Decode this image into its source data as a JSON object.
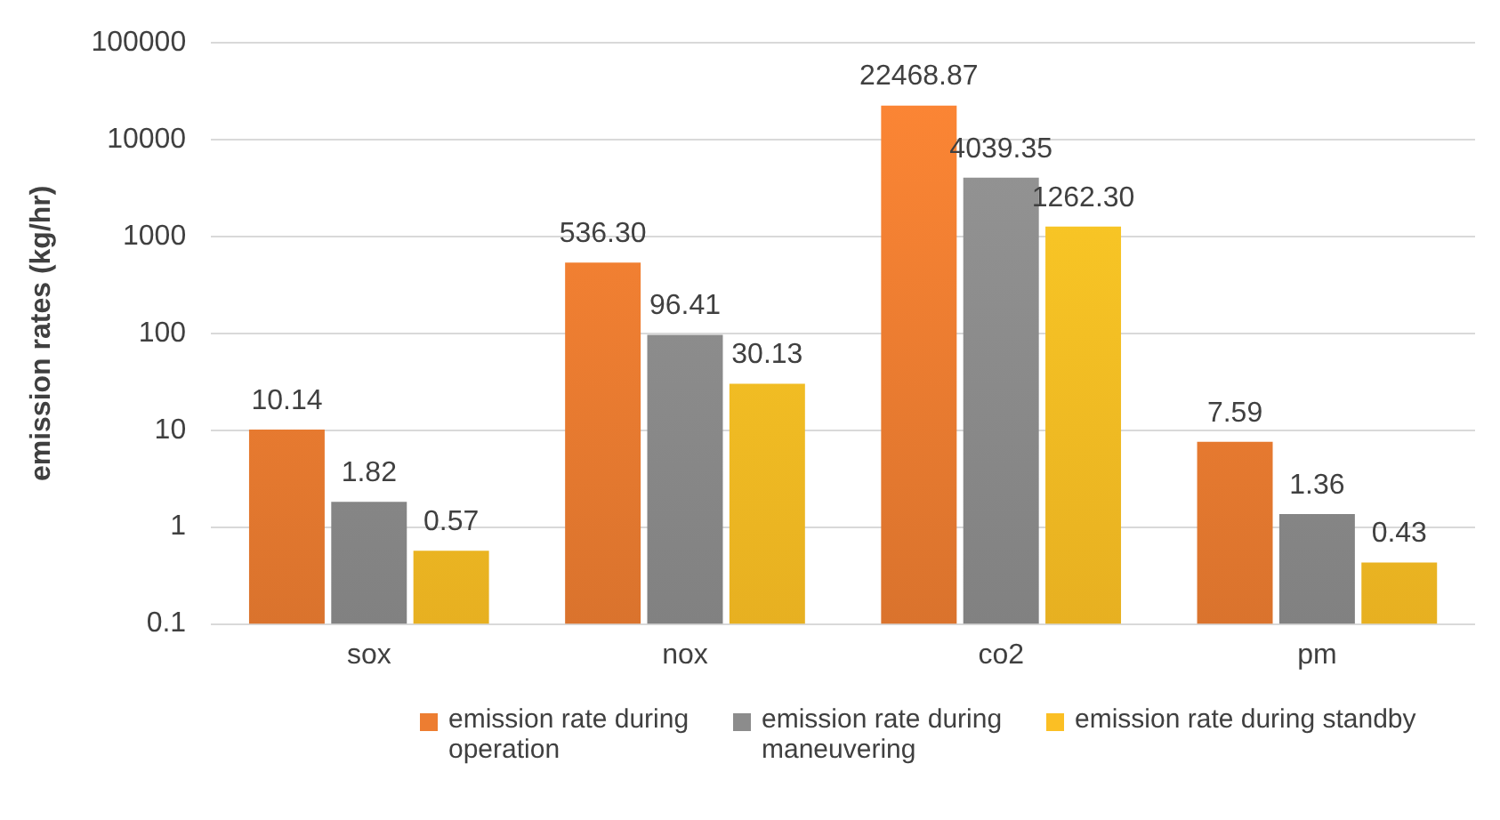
{
  "chart_data": {
    "type": "bar",
    "ylabel": "emission rates (kg/hr)",
    "log": "y",
    "ylim": [
      0.1,
      100000
    ],
    "yticks": [
      0.1,
      1,
      10,
      100,
      1000,
      10000,
      100000
    ],
    "grid": "y",
    "legend": "bottom",
    "categories": [
      "sox",
      "nox",
      "co2",
      "pm"
    ],
    "series": [
      {
        "name": "emission rate during operation",
        "color": "#ed7d31",
        "values": [
          10.14,
          536.3,
          22468.87,
          7.59
        ],
        "value_labels": [
          "10.14",
          "536.30",
          "22468.87",
          "7.59"
        ]
      },
      {
        "name": "emission rate during maneuvering",
        "color": "#8c8c8c",
        "values": [
          1.82,
          96.41,
          4039.35,
          1.36
        ],
        "value_labels": [
          "1.82",
          "96.41",
          "4039.35",
          "1.36"
        ]
      },
      {
        "name": "emission rate during standby",
        "color": "#fbbf24",
        "values": [
          0.57,
          30.13,
          1262.3,
          0.43
        ],
        "value_labels": [
          "0.57",
          "30.13",
          "1262.30",
          "0.43"
        ]
      }
    ]
  }
}
